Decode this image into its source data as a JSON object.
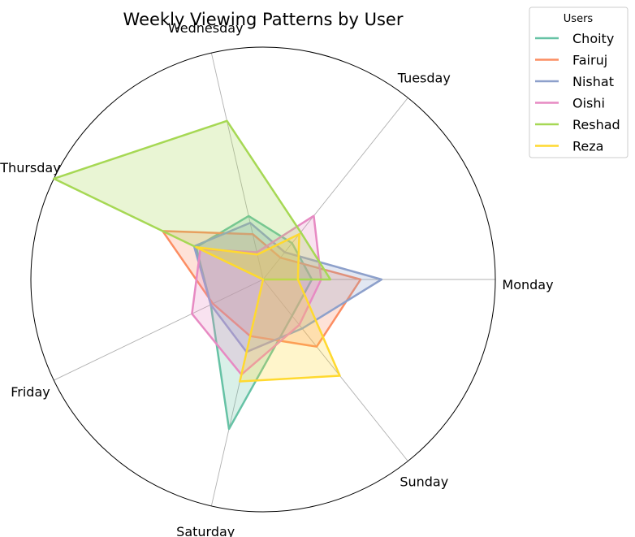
{
  "chart_data": {
    "type": "radar",
    "title": "Weekly Viewing Patterns by User",
    "categories": [
      "Monday",
      "Tuesday",
      "Wednesday",
      "Thursday",
      "Friday",
      "Saturday",
      "Sunday"
    ],
    "rmax": 100,
    "grid": false,
    "legend": {
      "title": "Users",
      "placement": "outside top-right"
    },
    "series": [
      {
        "name": "Choity",
        "color": "#66c2a5",
        "values": [
          21,
          20,
          28,
          32,
          25,
          66,
          20
        ]
      },
      {
        "name": "Fairuj",
        "color": "#fc8d62",
        "values": [
          42,
          12,
          20,
          48,
          24,
          25,
          37
        ]
      },
      {
        "name": "Nishat",
        "color": "#8da0cb",
        "values": [
          51,
          15,
          25,
          33,
          25,
          32,
          27
        ]
      },
      {
        "name": "Oishi",
        "color": "#e78ac3",
        "values": [
          25,
          35,
          12,
          30,
          34,
          42,
          25
        ]
      },
      {
        "name": "Reshad",
        "color": "#a6d854",
        "values": [
          29,
          26,
          70,
          100,
          0,
          0,
          0
        ]
      },
      {
        "name": "Reza",
        "color": "#ffd92f",
        "values": [
          15,
          25,
          11,
          32,
          0,
          45,
          53
        ]
      }
    ]
  }
}
